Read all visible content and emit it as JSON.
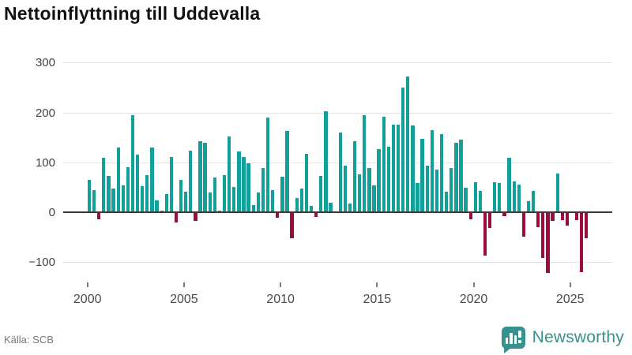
{
  "title": "Nettoinflyttning till Uddevalla",
  "source": "Källa: SCB",
  "brand": {
    "name": "Newsworthy",
    "logo_icon": "bar-chart-speech-bubble-icon",
    "color": "#36918f"
  },
  "chart_data": {
    "type": "bar",
    "title": "Nettoinflyttning till Uddevalla",
    "frequency": "quarterly",
    "grid": true,
    "positive_color": "#12a19a",
    "negative_color": "#9c0c3f",
    "y_ticks": [
      -100,
      0,
      100,
      200,
      300
    ],
    "y_tick_labels": [
      "−100",
      "0",
      "100",
      "200",
      "300"
    ],
    "ylim": [
      -150,
      320
    ],
    "x_tick_years": [
      2000,
      2005,
      2010,
      2015,
      2020,
      2025
    ],
    "x_tick_labels": [
      "2000",
      "2005",
      "2010",
      "2015",
      "2020",
      "2025"
    ],
    "categories": [
      "2000Q1",
      "2000Q2",
      "2000Q3",
      "2000Q4",
      "2001Q1",
      "2001Q2",
      "2001Q3",
      "2001Q4",
      "2002Q1",
      "2002Q2",
      "2002Q3",
      "2002Q4",
      "2003Q1",
      "2003Q2",
      "2003Q3",
      "2003Q4",
      "2004Q1",
      "2004Q2",
      "2004Q3",
      "2004Q4",
      "2005Q1",
      "2005Q2",
      "2005Q3",
      "2005Q4",
      "2006Q1",
      "2006Q2",
      "2006Q3",
      "2006Q4",
      "2007Q1",
      "2007Q2",
      "2007Q3",
      "2007Q4",
      "2008Q1",
      "2008Q2",
      "2008Q3",
      "2008Q4",
      "2009Q1",
      "2009Q2",
      "2009Q3",
      "2009Q4",
      "2010Q1",
      "2010Q2",
      "2010Q3",
      "2010Q4",
      "2011Q1",
      "2011Q2",
      "2011Q3",
      "2011Q4",
      "2012Q1",
      "2012Q2",
      "2012Q3",
      "2012Q4",
      "2013Q1",
      "2013Q2",
      "2013Q3",
      "2013Q4",
      "2014Q1",
      "2014Q2",
      "2014Q3",
      "2014Q4",
      "2015Q1",
      "2015Q2",
      "2015Q3",
      "2015Q4",
      "2016Q1",
      "2016Q2",
      "2016Q3",
      "2016Q4",
      "2017Q1",
      "2017Q2",
      "2017Q3",
      "2017Q4",
      "2018Q1",
      "2018Q2",
      "2018Q3",
      "2018Q4",
      "2019Q1",
      "2019Q2",
      "2019Q3",
      "2019Q4",
      "2020Q1",
      "2020Q2",
      "2020Q3",
      "2020Q4",
      "2021Q1",
      "2021Q2",
      "2021Q3",
      "2021Q4",
      "2022Q1",
      "2022Q2",
      "2022Q3",
      "2022Q4",
      "2023Q1",
      "2023Q2",
      "2023Q3",
      "2023Q4",
      "2024Q1",
      "2024Q2",
      "2024Q3",
      "2024Q4",
      "2025Q1",
      "2025Q2",
      "2025Q3",
      "2025Q4"
    ],
    "values": [
      65,
      45,
      -12,
      110,
      73,
      48,
      130,
      54,
      91,
      195,
      115,
      52,
      75,
      130,
      24,
      4,
      37,
      111,
      -19,
      65,
      42,
      124,
      -15,
      143,
      139,
      39,
      69,
      4,
      75,
      152,
      50,
      122,
      111,
      98,
      15,
      40,
      89,
      190,
      44,
      -10,
      71,
      163,
      -50,
      29,
      48,
      117,
      13,
      -8,
      73,
      202,
      19,
      2,
      160,
      94,
      17,
      143,
      76,
      194,
      88,
      54,
      127,
      192,
      131,
      175,
      176,
      250,
      273,
      174,
      58,
      147,
      93,
      165,
      85,
      156,
      42,
      88,
      139,
      146,
      49,
      -12,
      60,
      43,
      -86,
      -30,
      60,
      58,
      -7,
      110,
      62,
      55,
      -47,
      23,
      43,
      -28,
      -90,
      -120,
      -16,
      77,
      -14,
      -25,
      0,
      -14,
      -119,
      -51
    ]
  }
}
